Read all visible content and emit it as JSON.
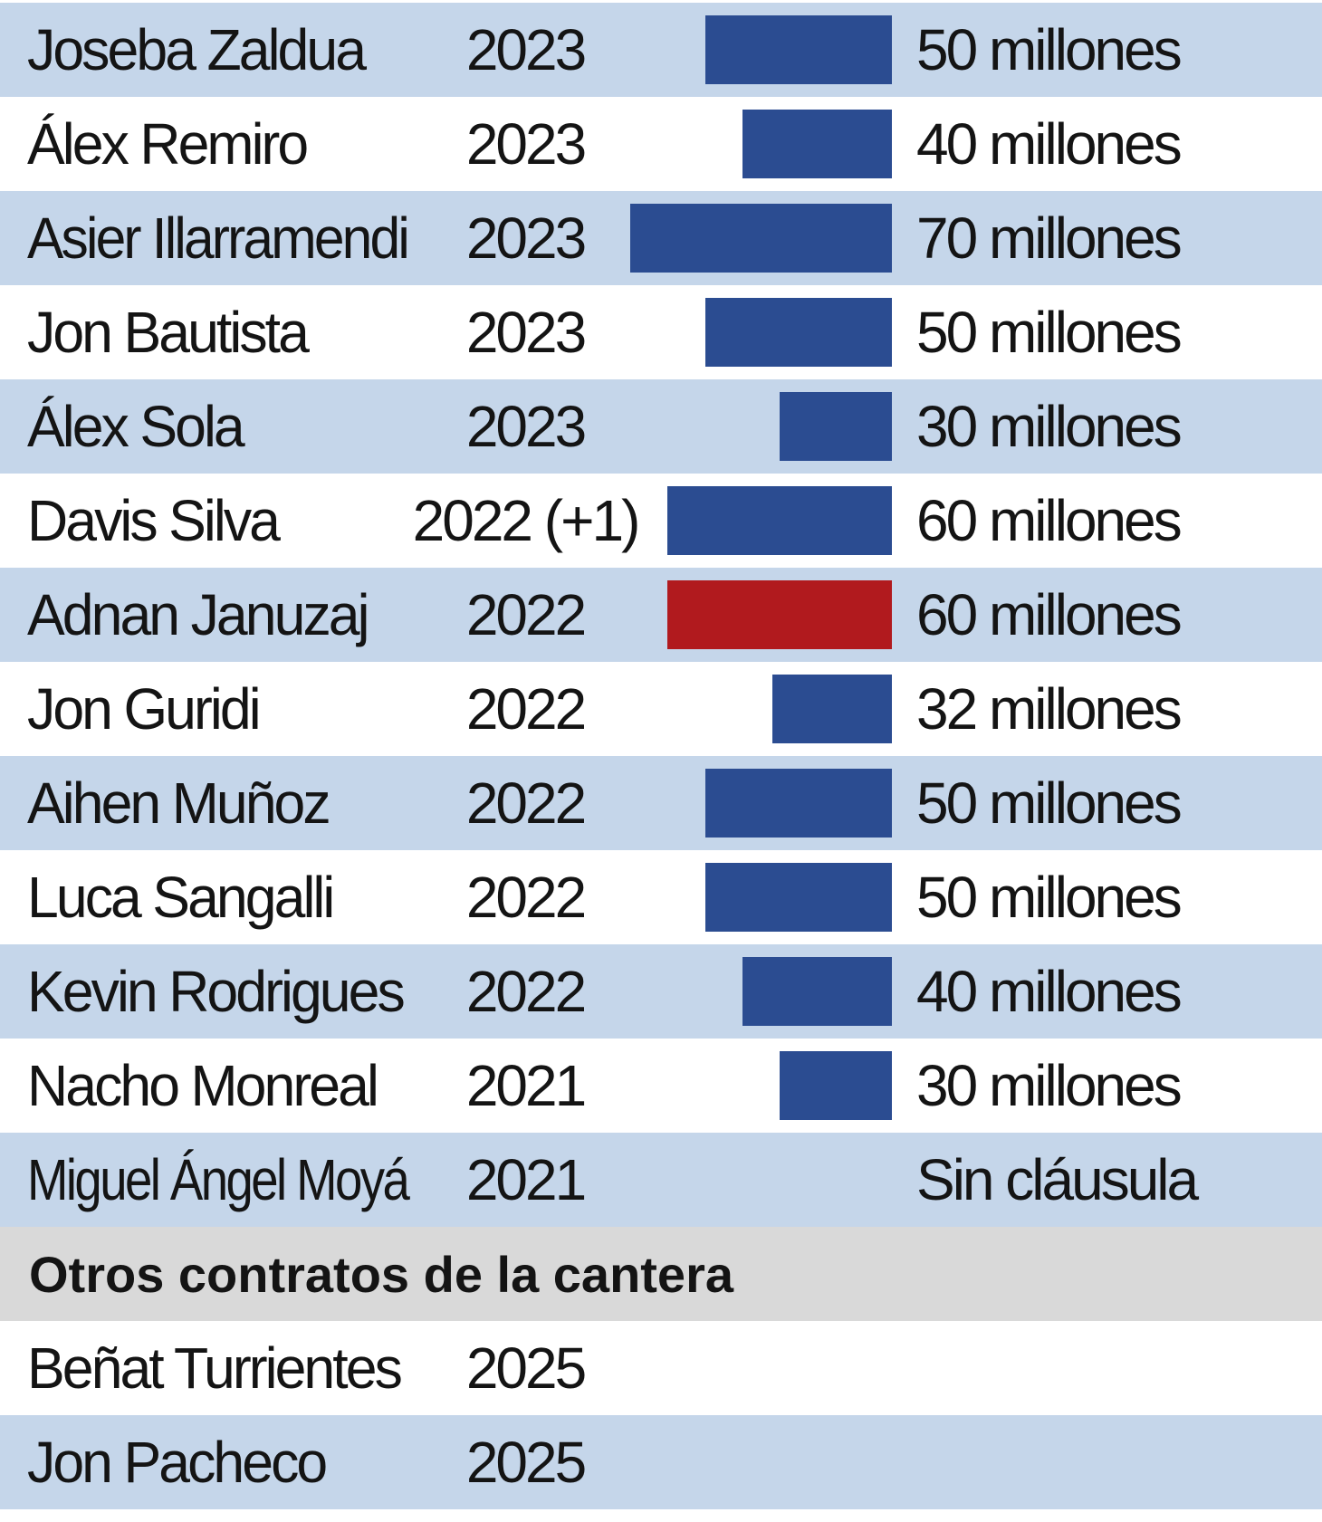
{
  "chart_data": {
    "type": "bar",
    "unit": "millones",
    "rows": [
      {
        "name": "Joseba Zaldua",
        "year": "2023",
        "value": 50,
        "label": "50 millones",
        "highlight": false
      },
      {
        "name": "Álex Remiro",
        "year": "2023",
        "value": 40,
        "label": "40 millones",
        "highlight": false
      },
      {
        "name": "Asier Illarramendi",
        "year": "2023",
        "value": 70,
        "label": "70 millones",
        "highlight": false
      },
      {
        "name": "Jon Bautista",
        "year": "2023",
        "value": 50,
        "label": "50 millones",
        "highlight": false
      },
      {
        "name": "Álex Sola",
        "year": "2023",
        "value": 30,
        "label": "30 millones",
        "highlight": false
      },
      {
        "name": "Davis Silva",
        "year": "2022 (+1)",
        "value": 60,
        "label": "60 millones",
        "highlight": false
      },
      {
        "name": "Adnan Januzaj",
        "year": "2022",
        "value": 60,
        "label": "60 millones",
        "highlight": true
      },
      {
        "name": "Jon Guridi",
        "year": "2022",
        "value": 32,
        "label": "32 millones",
        "highlight": false
      },
      {
        "name": "Aihen Muñoz",
        "year": "2022",
        "value": 50,
        "label": "50 millones",
        "highlight": false
      },
      {
        "name": "Luca Sangalli",
        "year": "2022",
        "value": 50,
        "label": "50 millones",
        "highlight": false
      },
      {
        "name": "Kevin Rodrigues",
        "year": "2022",
        "value": 40,
        "label": "40 millones",
        "highlight": false
      },
      {
        "name": "Nacho Monreal",
        "year": "2021",
        "value": 30,
        "label": "30 millones",
        "highlight": false
      },
      {
        "name": "Miguel Ángel Moyá",
        "year": "2021",
        "value": null,
        "label": "Sin cláusula",
        "highlight": false
      }
    ],
    "section": {
      "title": "Otros contratos de la cantera",
      "rows": [
        {
          "name": "Beñat Turrientes",
          "year": "2025"
        },
        {
          "name": "Jon Pacheco",
          "year": "2025"
        }
      ]
    },
    "colors": {
      "bar": "#2b4c91",
      "highlight": "#b11a1e",
      "shade": "#c5d6ea",
      "section": "#d9d9d9"
    }
  }
}
